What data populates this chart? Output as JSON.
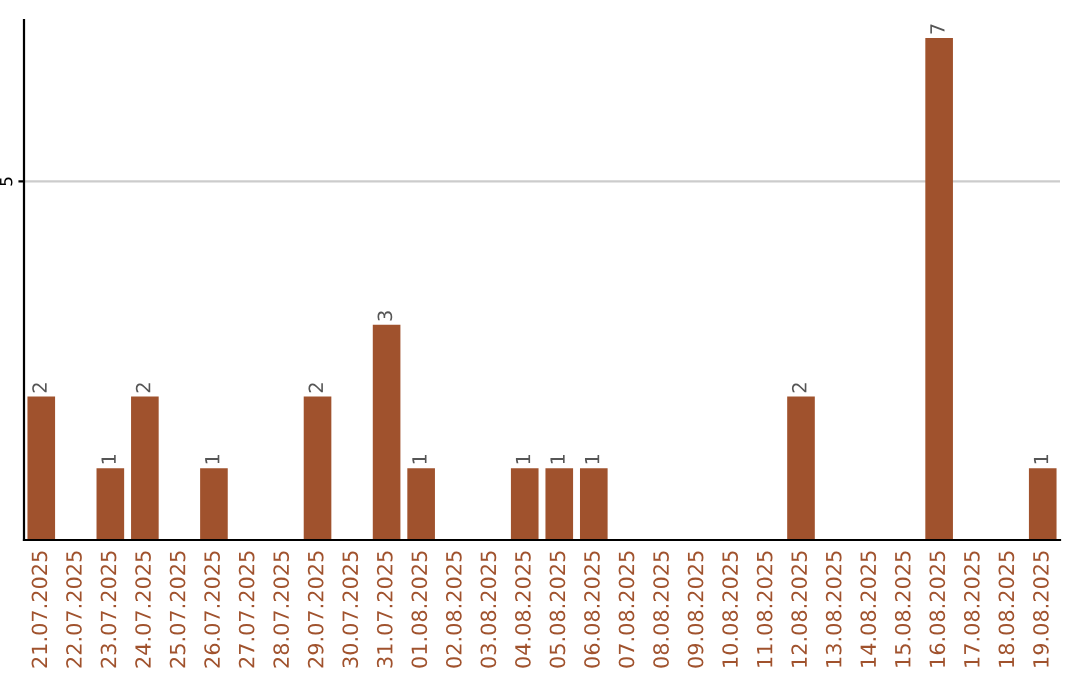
{
  "chart_data": {
    "type": "bar",
    "categories": [
      "21.07.2025",
      "22.07.2025",
      "23.07.2025",
      "24.07.2025",
      "25.07.2025",
      "26.07.2025",
      "27.07.2025",
      "28.07.2025",
      "29.07.2025",
      "30.07.2025",
      "31.07.2025",
      "01.08.2025",
      "02.08.2025",
      "03.08.2025",
      "04.08.2025",
      "05.08.2025",
      "06.08.2025",
      "07.08.2025",
      "08.08.2025",
      "09.08.2025",
      "10.08.2025",
      "11.08.2025",
      "12.08.2025",
      "13.08.2025",
      "14.08.2025",
      "15.08.2025",
      "16.08.2025",
      "17.08.2025",
      "18.08.2025",
      "19.08.2025"
    ],
    "values": [
      2,
      0,
      1,
      2,
      0,
      1,
      0,
      0,
      2,
      0,
      3,
      1,
      0,
      0,
      1,
      1,
      1,
      0,
      0,
      0,
      0,
      0,
      2,
      0,
      0,
      0,
      7,
      0,
      0,
      1
    ],
    "value_labels": [
      "2",
      null,
      "1",
      "2",
      null,
      "1",
      null,
      null,
      "2",
      null,
      "3",
      "1",
      null,
      null,
      "1",
      "1",
      "1",
      null,
      null,
      null,
      null,
      null,
      "2",
      null,
      null,
      null,
      "7",
      null,
      null,
      "1"
    ],
    "color": "#a0522d",
    "ylim": [
      0,
      7.25
    ],
    "yticks": [
      5
    ],
    "grid": "y"
  }
}
